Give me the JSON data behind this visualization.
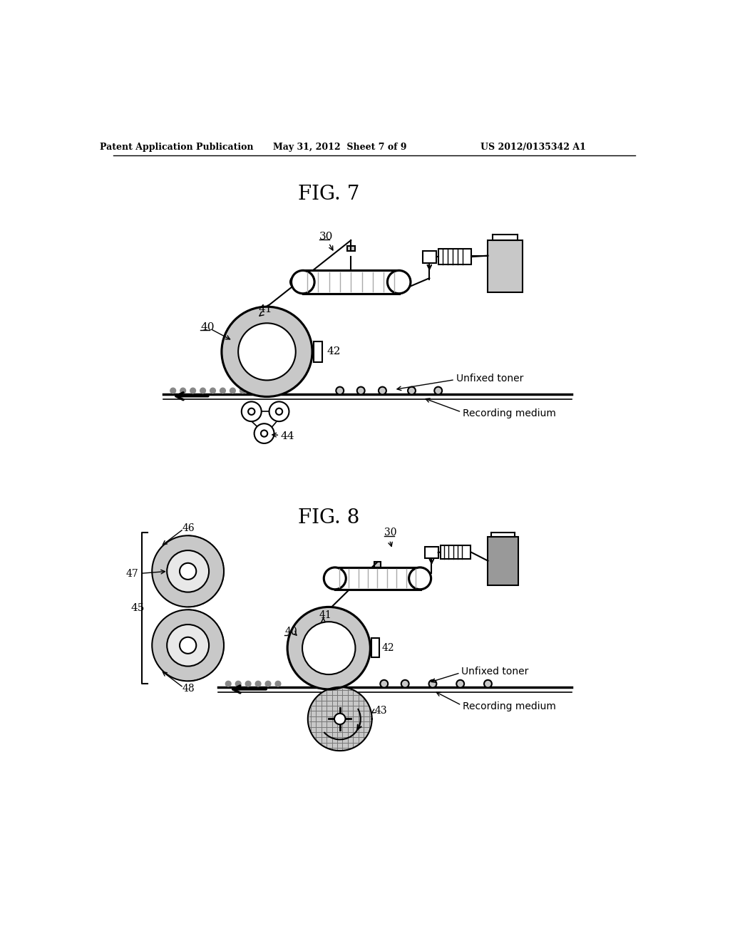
{
  "bg_color": "#ffffff",
  "header_left": "Patent Application Publication",
  "header_mid": "May 31, 2012  Sheet 7 of 9",
  "header_right": "US 2012/0135342 A1",
  "fig7_title": "FIG. 7",
  "fig8_title": "FIG. 8",
  "gray_light": "#c8c8c8",
  "gray_medium": "#999999",
  "gray_dark": "#606060",
  "black": "#000000",
  "white": "#ffffff"
}
